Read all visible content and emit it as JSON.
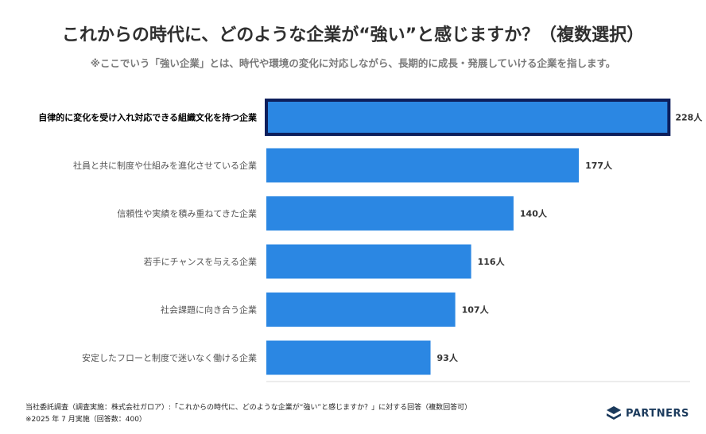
{
  "title": "これからの時代に、どのような企業が“強い”と感じますか？（複数選択）",
  "subtitle": "※ここでいう「強い企業」とは、時代や環境の変化に対応しながら、長期的に成長・発展していける企業を指します。",
  "chart_data": {
    "type": "bar",
    "orientation": "horizontal",
    "categories": [
      "自律的に変化を受け入れ対応できる組織文化を持つ企業",
      "社員と共に制度や仕組みを進化させている企業",
      "信頼性や実績を積み重ねてきた企業",
      "若手にチャンスを与える企業",
      "社会課題に向き合う企業",
      "安定したフローと制度で迷いなく働ける企業"
    ],
    "values": [
      228,
      177,
      140,
      116,
      107,
      93
    ],
    "value_labels": [
      "228人",
      "177人",
      "140人",
      "116人",
      "107人",
      "93人"
    ],
    "unit": "人",
    "highlighted_index": 0,
    "xlim": [
      0,
      240
    ],
    "grid": false,
    "bar_color": "#2b87e3",
    "highlight_border_color": "#0d1f5c"
  },
  "footnotes": {
    "line1": "当社委託調査（調査実施：株式会社ガロア）:「これからの時代に、どのような企業が“強い”と感じますか？」に対する回答（複数回答可）",
    "line2": "※2025 年 7 月実施（回答数：400）"
  },
  "logo": {
    "text": "PARTNERS",
    "icon": "partners-logo-icon",
    "color": "#1b3a5c"
  }
}
